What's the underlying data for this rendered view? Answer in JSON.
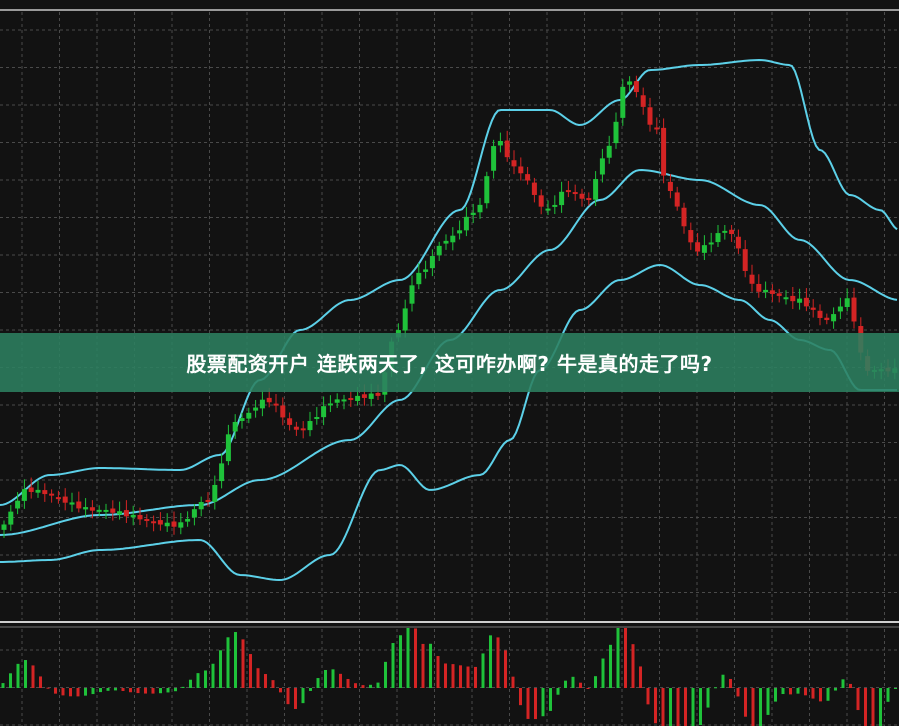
{
  "banner": {
    "title": "股票配资开户 连跌两天了, 这可咋办啊? 牛是真的走了吗?"
  }
}
